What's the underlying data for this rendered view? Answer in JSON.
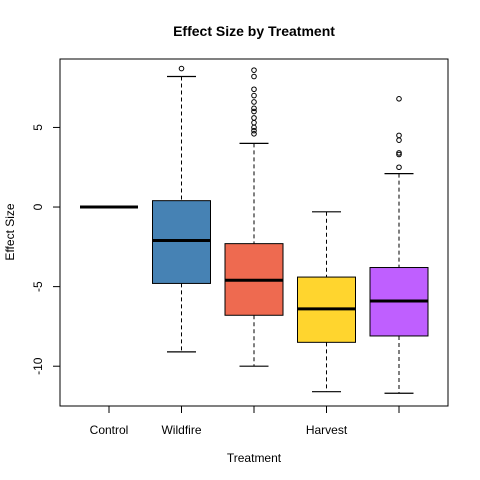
{
  "chart_data": {
    "type": "boxplot",
    "title": "Effect Size by Treatment",
    "xlabel": "Treatment",
    "ylabel": "Effect Size",
    "ylim": [
      -12.5,
      9.3
    ],
    "yticks": [
      -10,
      -5,
      0,
      5
    ],
    "ytick_labels": [
      "-10",
      "-5",
      "0",
      "5"
    ],
    "categories": [
      "Control",
      "Wildfire",
      "",
      "Harvest",
      ""
    ],
    "boxes": [
      {
        "category": "Control",
        "color": "#000000",
        "whisker_low": 0,
        "q1": 0,
        "median": 0,
        "q3": 0,
        "whisker_high": 0,
        "outliers": []
      },
      {
        "category": "Wildfire",
        "color": "#4682B4",
        "whisker_low": -9.1,
        "q1": -4.8,
        "median": -2.1,
        "q3": 0.4,
        "whisker_high": 8.2,
        "outliers": [
          8.7
        ]
      },
      {
        "category": "",
        "color": "#EE6A50",
        "whisker_low": -10.0,
        "q1": -6.8,
        "median": -4.6,
        "q3": -2.3,
        "whisker_high": 4.0,
        "outliers": [
          4.6,
          4.8,
          5.0,
          5.3,
          5.6,
          6.0,
          6.2,
          6.6,
          7.0,
          7.4,
          8.2,
          8.6
        ]
      },
      {
        "category": "Harvest",
        "color": "#FFD52E",
        "whisker_low": -11.6,
        "q1": -8.5,
        "median": -6.4,
        "q3": -4.4,
        "whisker_high": -0.3,
        "outliers": []
      },
      {
        "category": "",
        "color": "#BF5FFF",
        "whisker_low": -11.7,
        "q1": -8.1,
        "median": -5.9,
        "q3": -3.8,
        "whisker_high": 2.1,
        "outliers": [
          2.5,
          3.3,
          3.4,
          4.2,
          4.5,
          6.8
        ]
      }
    ],
    "grid": false,
    "legend": "none"
  }
}
